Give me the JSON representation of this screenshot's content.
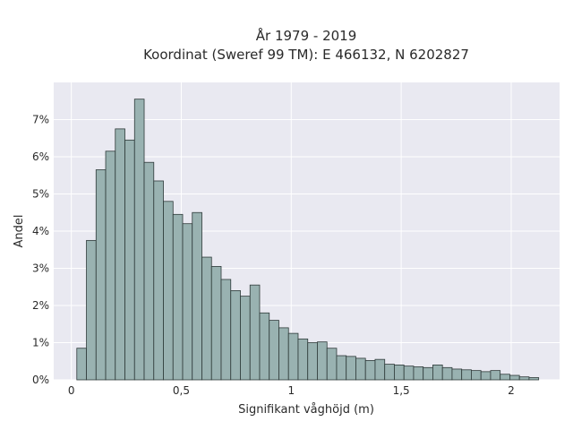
{
  "chart_data": {
    "type": "bar",
    "title": "År 1979 - 2019",
    "subtitle": "Koordinat (Sweref 99 TM): E 466132, N 6202827",
    "xlabel": "Signifikant våghöjd (m)",
    "ylabel": "Andel",
    "xlim": [
      -0.08,
      2.22
    ],
    "ylim": [
      0,
      8
    ],
    "grid": true,
    "x_ticks": [
      0,
      0.5,
      1,
      1.5,
      2
    ],
    "x_tick_labels": [
      "0",
      "0,5",
      "1",
      "1,5",
      "2"
    ],
    "y_ticks": [
      0,
      1,
      2,
      3,
      4,
      5,
      6,
      7
    ],
    "y_tick_labels": [
      "0%",
      "1%",
      "2%",
      "3%",
      "4%",
      "5%",
      "6%",
      "7%"
    ],
    "bin_width": 0.04375,
    "bin_starts": [
      0.025,
      0.06875,
      0.1125,
      0.15625,
      0.2,
      0.24375,
      0.2875,
      0.33125,
      0.375,
      0.41875,
      0.4625,
      0.50625,
      0.55,
      0.59375,
      0.6375,
      0.68125,
      0.725,
      0.76875,
      0.8125,
      0.85625,
      0.9,
      0.94375,
      0.9875,
      1.03125,
      1.075,
      1.11875,
      1.1625,
      1.20625,
      1.25,
      1.29375,
      1.3375,
      1.38125,
      1.425,
      1.46875,
      1.5125,
      1.55625,
      1.6,
      1.64375,
      1.6875,
      1.73125,
      1.775,
      1.81875,
      1.8625,
      1.90625,
      1.95,
      1.99375,
      2.0375,
      2.08125
    ],
    "values": [
      0.85,
      3.75,
      5.65,
      6.15,
      6.75,
      6.45,
      7.55,
      5.85,
      5.35,
      4.8,
      4.45,
      4.2,
      4.5,
      3.3,
      3.05,
      2.7,
      2.4,
      2.25,
      2.55,
      1.8,
      1.6,
      1.4,
      1.25,
      1.1,
      1.0,
      1.02,
      0.85,
      0.65,
      0.63,
      0.58,
      0.52,
      0.55,
      0.42,
      0.4,
      0.37,
      0.35,
      0.33,
      0.4,
      0.33,
      0.29,
      0.27,
      0.25,
      0.22,
      0.25,
      0.15,
      0.12,
      0.08,
      0.06
    ]
  }
}
